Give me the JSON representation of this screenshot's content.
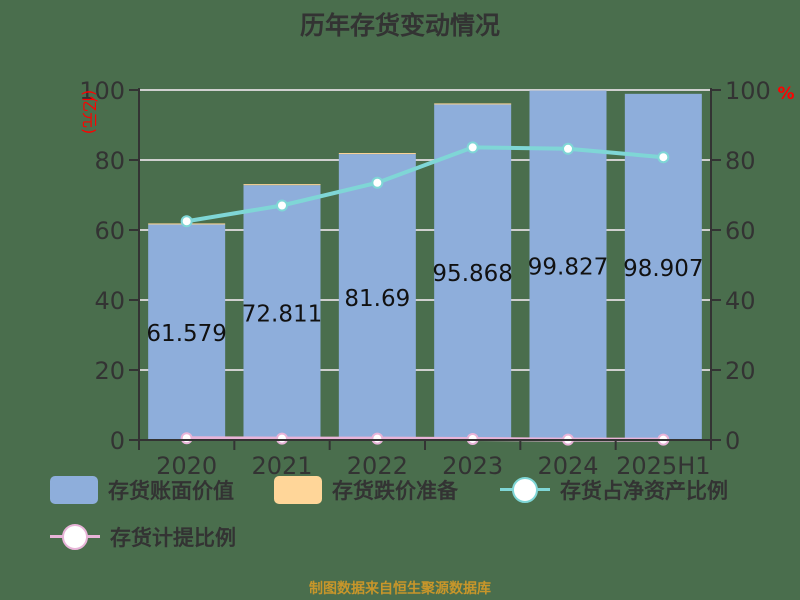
{
  "title": "历年存货变动情况",
  "source": "制图数据来自恒生聚源数据库",
  "axes": {
    "left_unit": "(亿元)",
    "right_unit": "%",
    "left_ticks": [
      "0",
      "20",
      "40",
      "60",
      "80",
      "100"
    ],
    "right_ticks": [
      "0",
      "20",
      "40",
      "60",
      "80",
      "100"
    ]
  },
  "legend": [
    {
      "label": "存货账面价值",
      "type": "rect",
      "color": "#8eaedb"
    },
    {
      "label": "存货跌价准备",
      "type": "rect",
      "color": "#ffd699"
    },
    {
      "label": "存货占净资产比例",
      "type": "line",
      "color": "#7fd6d6"
    },
    {
      "label": "存货计提比例",
      "type": "line",
      "color": "#e8b4d8"
    }
  ],
  "colors": {
    "background": "#4a6e4d",
    "bar_book_value": "#8eaedb",
    "bar_provision": "#ffd699",
    "line_ratio_net_assets": "#7fd6d6",
    "line_provision_ratio": "#e8b4d8",
    "grid": "#d0d0d0",
    "axis": "#333333",
    "unit_label": "#ff0000"
  },
  "chart_data": {
    "type": "bar",
    "title": "历年存货变动情况",
    "categories": [
      "2020",
      "2021",
      "2022",
      "2023",
      "2024",
      "2025H1"
    ],
    "series": [
      {
        "name": "存货账面价值",
        "type": "bar",
        "axis": "left",
        "stack": "inv",
        "values": [
          61.579,
          72.811,
          81.69,
          95.868,
          99.827,
          98.907
        ],
        "labels": [
          "61.579",
          "72.811",
          "81.69",
          "95.868",
          "99.827",
          "98.907"
        ]
      },
      {
        "name": "存货跌价准备",
        "type": "bar",
        "axis": "left",
        "stack": "inv",
        "values": [
          0.3,
          0.3,
          0.3,
          0.3,
          0.0,
          0.0
        ]
      },
      {
        "name": "存货占净资产比例",
        "type": "line",
        "axis": "right",
        "values": [
          62.5,
          67.0,
          73.5,
          83.6,
          83.2,
          80.8
        ]
      },
      {
        "name": "存货计提比例",
        "type": "line",
        "axis": "right",
        "values": [
          0.5,
          0.4,
          0.4,
          0.3,
          0.1,
          0.1
        ]
      }
    ],
    "xlabel": "",
    "ylabel": "(亿元)",
    "y2label": "%",
    "ylim": [
      0,
      100
    ],
    "y2lim": [
      0,
      100
    ],
    "grid": true,
    "legend_position": "bottom"
  }
}
